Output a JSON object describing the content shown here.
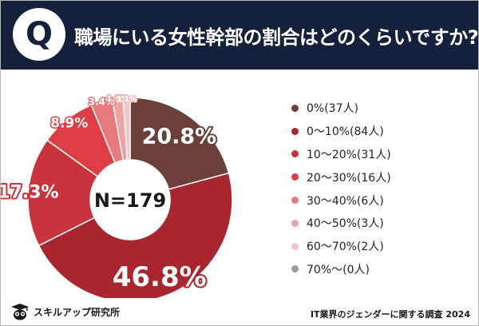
{
  "header": {
    "q_letter": "Q",
    "title": "職場にいる女性幹部の割合はどのくらいですか?"
  },
  "chart_data": {
    "type": "pie",
    "variant": "donut",
    "center_label": "N=179",
    "slices": [
      {
        "label": "0%(37人)",
        "value": 20.8,
        "display": "20.8%",
        "color": "#6b3f3a"
      },
      {
        "label": "0～10%(84人)",
        "value": 46.8,
        "display": "46.8%",
        "color": "#a8262f"
      },
      {
        "label": "10～20%(31人)",
        "value": 17.3,
        "display": "17.3%",
        "color": "#c7343b"
      },
      {
        "label": "20～30%(16人)",
        "value": 8.9,
        "display": "8.9%",
        "color": "#db3f45"
      },
      {
        "label": "30～40%(6人)",
        "value": 3.4,
        "display": "3.4%",
        "color": "#e8797c"
      },
      {
        "label": "40～50%(3人)",
        "value": 1.7,
        "display": "1.7%",
        "color": "#eea3a3"
      },
      {
        "label": "60～70%(2人)",
        "value": 1.1,
        "display": "1.1%",
        "color": "#f2c6c6"
      },
      {
        "label": "70%～(0人)",
        "value": 0,
        "display": "",
        "color": "#9a9aa6"
      }
    ],
    "legend_position": "right"
  },
  "footer": {
    "brand": "スキルアップ研究所",
    "source": "IT業界のジェンダーに関する調査 2024"
  }
}
